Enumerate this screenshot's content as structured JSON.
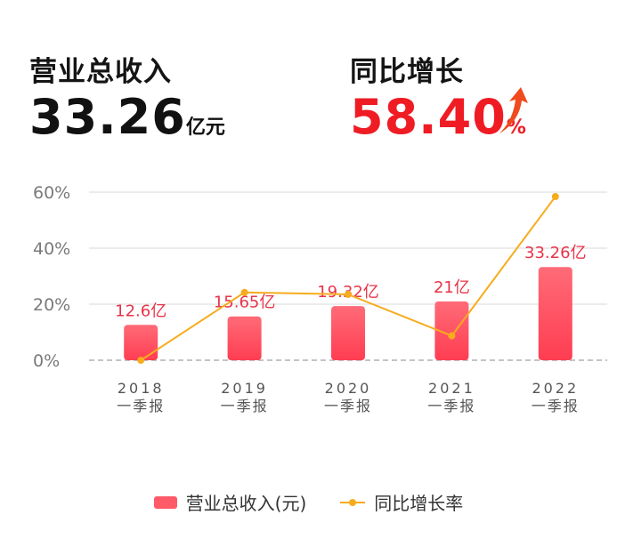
{
  "kpis": {
    "revenue": {
      "label": "营业总收入",
      "value": "33.26",
      "unit": "亿元"
    },
    "growth": {
      "label": "同比增长",
      "value": "58.40",
      "unit": "%"
    }
  },
  "colors": {
    "bar": "#ff5a67",
    "bar_light": "#ff6b77",
    "line": "#f6ac1d",
    "value_label": "#e8344a",
    "growth_text": "#ef1c24",
    "up_arrow": "#f04a1f"
  },
  "chart_data": {
    "type": "bar",
    "categories": [
      [
        "2018",
        "一季报"
      ],
      [
        "2019",
        "一季报"
      ],
      [
        "2020",
        "一季报"
      ],
      [
        "2021",
        "一季报"
      ],
      [
        "2022",
        "一季报"
      ]
    ],
    "series": [
      {
        "name": "营业总收入(元)",
        "type": "bar",
        "values": [
          12.6,
          15.65,
          19.32,
          21,
          33.26
        ],
        "labels": [
          "12.6亿",
          "15.65亿",
          "19.32亿",
          "21亿",
          "33.26亿"
        ],
        "axis": "right"
      },
      {
        "name": "同比增长率",
        "type": "line",
        "values": [
          -0.01,
          24.2,
          23.5,
          8.7,
          58.4
        ],
        "axis": "left"
      }
    ],
    "y_axis": {
      "ticks": [
        "0%",
        "20%",
        "40%",
        "60%"
      ],
      "range": [
        0,
        60
      ]
    },
    "bar_axis_range": [
      0,
      60
    ],
    "grid": true,
    "legend": "bottom-center"
  }
}
